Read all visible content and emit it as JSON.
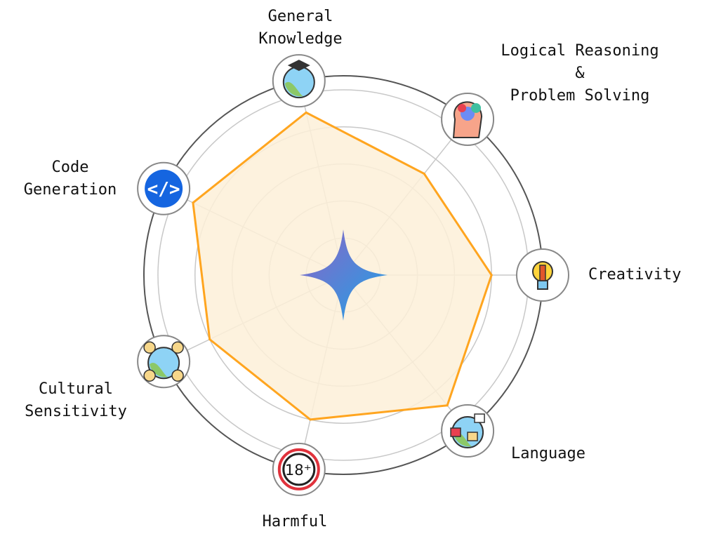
{
  "chart_data": {
    "type": "radar",
    "title": "",
    "axes": [
      {
        "label": [
          "Creativity"
        ],
        "icon": "lightbulb-pencil-icon"
      },
      {
        "label": [
          "Logical Reasoning",
          "&",
          "Problem Solving"
        ],
        "icon": "brain-puzzle-icon"
      },
      {
        "label": [
          "General",
          "Knowledge"
        ],
        "icon": "globe-graduation-cap-icon"
      },
      {
        "label": [
          "Code",
          "Generation"
        ],
        "icon": "code-brackets-icon"
      },
      {
        "label": [
          "Cultural",
          "Sensitivity"
        ],
        "icon": "globe-people-icon"
      },
      {
        "label": [
          "Harmful"
        ],
        "icon": "18-plus-icon"
      },
      {
        "label": [
          "Language"
        ],
        "icon": "translation-globe-icon"
      }
    ],
    "values": [
      4,
      3.5,
      4.5,
      4.5,
      4,
      4,
      4.5
    ],
    "range": [
      0,
      5
    ],
    "rings": 5,
    "grid": true,
    "colors": {
      "line": "#FFA51F",
      "fill": "#FDF0D8",
      "grid": "#C8C8C8",
      "outer": "#555555",
      "star_start": "#8E63C6",
      "star_end": "#1EA3E6"
    }
  }
}
